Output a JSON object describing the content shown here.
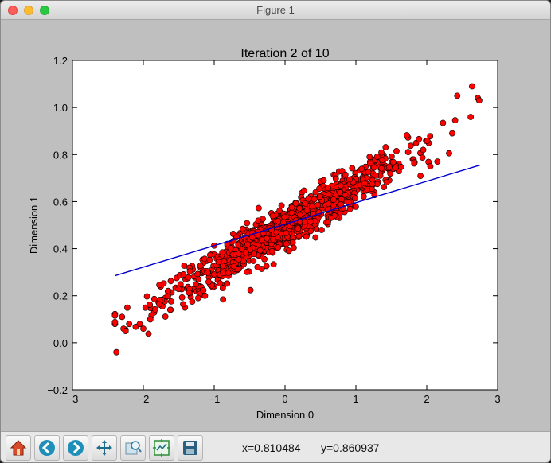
{
  "window": {
    "title": "Figure 1"
  },
  "toolbar": {
    "buttons": [
      {
        "name": "home-button",
        "icon": "home-icon"
      },
      {
        "name": "back-button",
        "icon": "back-arrow-icon"
      },
      {
        "name": "forward-button",
        "icon": "forward-arrow-icon"
      },
      {
        "name": "pan-button",
        "icon": "pan-arrows-icon"
      },
      {
        "name": "zoom-button",
        "icon": "zoom-rect-icon"
      },
      {
        "name": "subplots-button",
        "icon": "subplots-config-icon"
      },
      {
        "name": "save-button",
        "icon": "floppy-disk-icon"
      }
    ],
    "x_readout": "x=0.810484",
    "y_readout": "y=0.860937"
  },
  "chart_data": {
    "type": "scatter",
    "title": "Iteration 2 of 10",
    "xlabel": "Dimension 0",
    "ylabel": "Dimension 1",
    "xlim": [
      -3,
      3
    ],
    "ylim": [
      -0.2,
      1.2
    ],
    "xticks": [
      "−3",
      "−2",
      "−1",
      "0",
      "1",
      "2",
      "3"
    ],
    "yticks": [
      "−0.2",
      "0.0",
      "0.2",
      "0.4",
      "0.6",
      "0.8",
      "1.0",
      "1.2"
    ],
    "grid": false,
    "colors": {
      "points": "#ff0000",
      "line": "#0000cc"
    },
    "scatter_model": {
      "count": 1000,
      "x_range": [
        -2.4,
        2.8
      ],
      "slope": 0.175,
      "intercept": 0.49,
      "noise": 0.045
    },
    "series": [
      {
        "points": [
          [
            -2.38,
            -0.04
          ],
          [
            -2.3,
            0.11
          ],
          [
            -2.28,
            0.06
          ],
          [
            -2.25,
            0.05
          ],
          [
            -2.2,
            0.08
          ],
          [
            2.43,
            1.05
          ],
          [
            2.64,
            1.09
          ],
          [
            2.72,
            1.04
          ],
          [
            2.62,
            0.96
          ],
          [
            2.74,
            1.03
          ],
          [
            2.15,
            0.77
          ],
          [
            2.05,
            0.75
          ],
          [
            1.95,
            0.82
          ],
          [
            -2.05,
            0.08
          ],
          [
            -2.0,
            0.06
          ]
        ]
      }
    ],
    "line": {
      "x": [
        -2.4,
        2.75
      ],
      "y": [
        0.285,
        0.755
      ]
    }
  }
}
